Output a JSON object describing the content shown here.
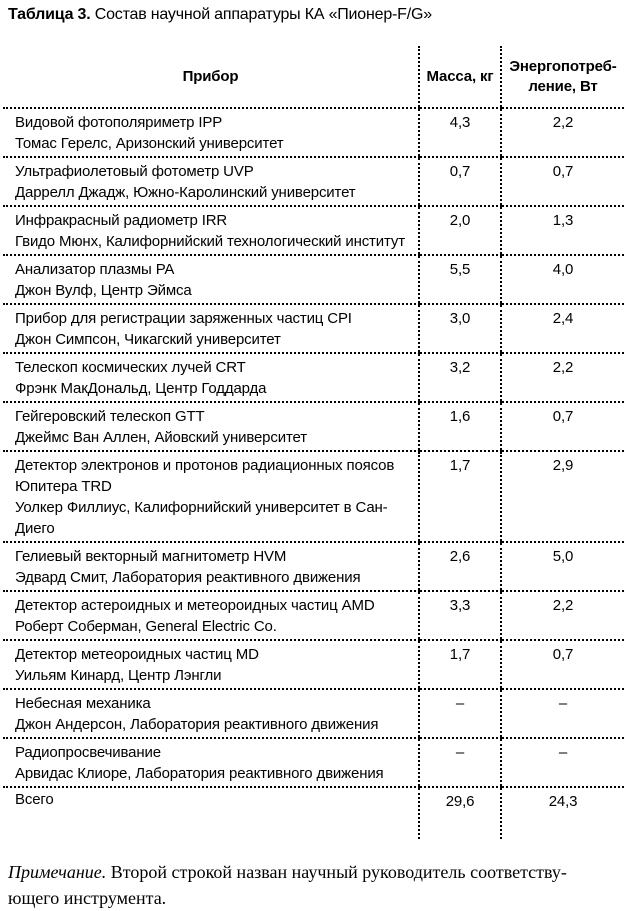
{
  "caption": {
    "label": "Таблица 3.",
    "text": " Состав научной аппаратуры КА «Пионер-F/G»"
  },
  "table": {
    "headers": {
      "instrument": "Прибор",
      "mass": "Масса, кг",
      "power": "Энергопотреб-\nление, Вт"
    },
    "rows": [
      {
        "name": "Видовой фотополяриметр IPP",
        "investigator": "Томас Герелс, Аризонский университет",
        "mass": "4,3",
        "power": "2,2"
      },
      {
        "name": "Ультрафиолетовый фотометр UVP",
        "investigator": "Даррелл Джадж, Южно-Каролинский университет",
        "mass": "0,7",
        "power": "0,7"
      },
      {
        "name": "Инфракрасный радиометр IRR",
        "investigator": "Гвидо Мюнх, Калифорнийский технологический институт",
        "mass": "2,0",
        "power": "1,3"
      },
      {
        "name": "Анализатор плазмы PA",
        "investigator": "Джон Вулф, Центр Эймса",
        "mass": "5,5",
        "power": "4,0"
      },
      {
        "name": "Прибор для регистрации заряженных частиц CPI",
        "investigator": "Джон Симпсон, Чикагский университет",
        "mass": "3,0",
        "power": "2,4"
      },
      {
        "name": "Телескоп космических лучей CRT",
        "investigator": "Фрэнк МакДональд, Центр Годдарда",
        "mass": "3,2",
        "power": "2,2"
      },
      {
        "name": "Гейгеровский телескоп GTT",
        "investigator": "Джеймс Ван Аллен, Айовский университет",
        "mass": "1,6",
        "power": "0,7"
      },
      {
        "name": "Детектор электронов и протонов радиационных поясов Юпитера TRD",
        "investigator": "Уолкер Филлиус, Калифорнийский университет в Сан-Диего",
        "mass": "1,7",
        "power": "2,9"
      },
      {
        "name": "Гелиевый векторный магнитометр HVM",
        "investigator": "Эдвард Смит, Лаборатория реактивного движения",
        "mass": "2,6",
        "power": "5,0"
      },
      {
        "name": "Детектор астероидных и метеороидных частиц AMD",
        "investigator": "Роберт Соберман, General Electric Co.",
        "mass": "3,3",
        "power": "2,2"
      },
      {
        "name": "Детектор метеороидных частиц MD",
        "investigator": "Уильям Кинард, Центр Лэнгли",
        "mass": "1,7",
        "power": "0,7"
      },
      {
        "name": "Небесная механика",
        "investigator": "Джон Андерсон, Лаборатория реактивного движения",
        "mass": "–",
        "power": "–"
      },
      {
        "name": "Радиопросвечивание",
        "investigator": "Арвидас Клиоре, Лаборатория реактивного движения",
        "mass": "–",
        "power": "–"
      }
    ],
    "total": {
      "label": "Всего",
      "mass": "29,6",
      "power": "24,3"
    }
  },
  "note": {
    "lead": "Примечание.",
    "line1_rest": " Второй строкой назван научный руководитель соответству-",
    "line2": "ющего инструмента."
  },
  "colors": {
    "text": "#000000",
    "background": "#ffffff",
    "rule": "#000000"
  }
}
